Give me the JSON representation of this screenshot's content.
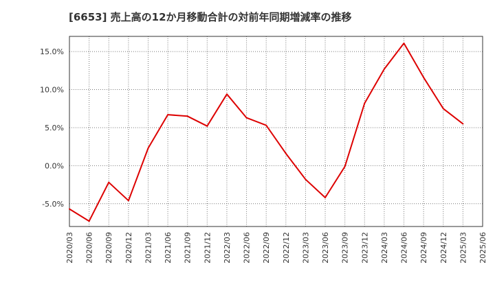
{
  "chart_data": {
    "type": "line",
    "title": "[6653]  売上高の12か月移動合計の対前年同期増減率の推移",
    "xlabel": "",
    "ylabel": "",
    "x": [
      "2020/03",
      "2020/06",
      "2020/09",
      "2020/12",
      "2021/03",
      "2021/06",
      "2021/09",
      "2021/12",
      "2022/03",
      "2022/06",
      "2022/09",
      "2022/12",
      "2023/03",
      "2023/06",
      "2023/09",
      "2023/12",
      "2024/03",
      "2024/06",
      "2024/09",
      "2024/12",
      "2025/03",
      "2025/06"
    ],
    "series": [
      {
        "color": "#dd0000",
        "values": [
          -5.7,
          -7.3,
          -2.2,
          -4.6,
          2.3,
          6.7,
          6.5,
          5.2,
          9.4,
          6.3,
          5.3,
          1.6,
          -1.8,
          -4.2,
          -0.1,
          8.2,
          12.7,
          16.1,
          11.6,
          7.5,
          5.5,
          null
        ]
      }
    ],
    "yticks": [
      -5.0,
      0.0,
      5.0,
      10.0,
      15.0
    ],
    "ytick_labels": [
      "-5.0%",
      "0.0%",
      "5.0%",
      "10.0%",
      "15.0%"
    ],
    "ylim": [
      -8.0,
      17.0
    ],
    "grid": true
  }
}
